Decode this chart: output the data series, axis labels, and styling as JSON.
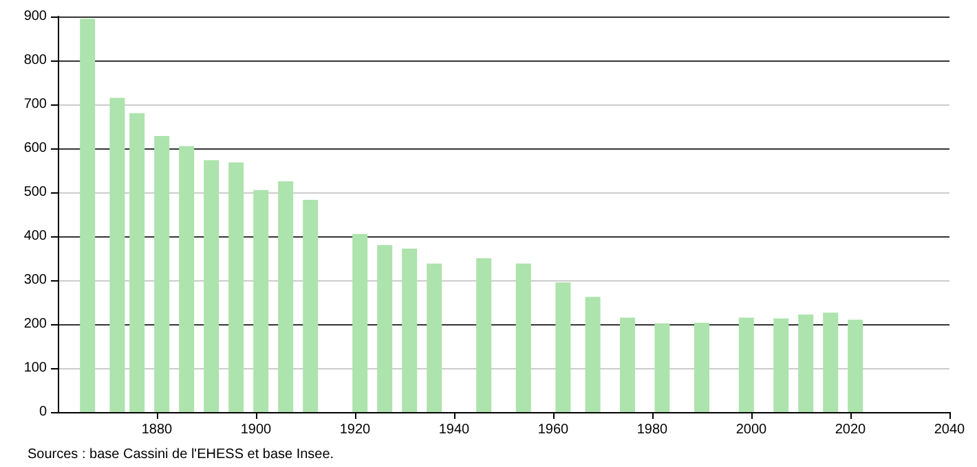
{
  "chart_data": {
    "type": "bar",
    "x": [
      1866,
      1872,
      1876,
      1881,
      1886,
      1891,
      1896,
      1901,
      1906,
      1911,
      1921,
      1926,
      1931,
      1936,
      1946,
      1954,
      1962,
      1968,
      1975,
      1982,
      1990,
      1999,
      2006,
      2011,
      2016,
      2021
    ],
    "values": [
      895,
      715,
      680,
      628,
      605,
      573,
      568,
      505,
      525,
      483,
      405,
      380,
      372,
      338,
      350,
      338,
      295,
      262,
      215,
      202,
      203,
      215,
      213,
      222,
      226,
      210
    ],
    "color": "#ade3ad",
    "xlim": [
      1860,
      2040
    ],
    "xticks": [
      1880,
      1900,
      1920,
      1940,
      1960,
      1980,
      2000,
      2020,
      2040
    ],
    "ylim": [
      0,
      900
    ],
    "yticks": [
      0,
      100,
      200,
      300,
      400,
      500,
      600,
      700,
      800,
      900
    ],
    "grid": "y",
    "annotations": [
      "Sources : base Cassini de l'EHESS et base Insee."
    ]
  }
}
